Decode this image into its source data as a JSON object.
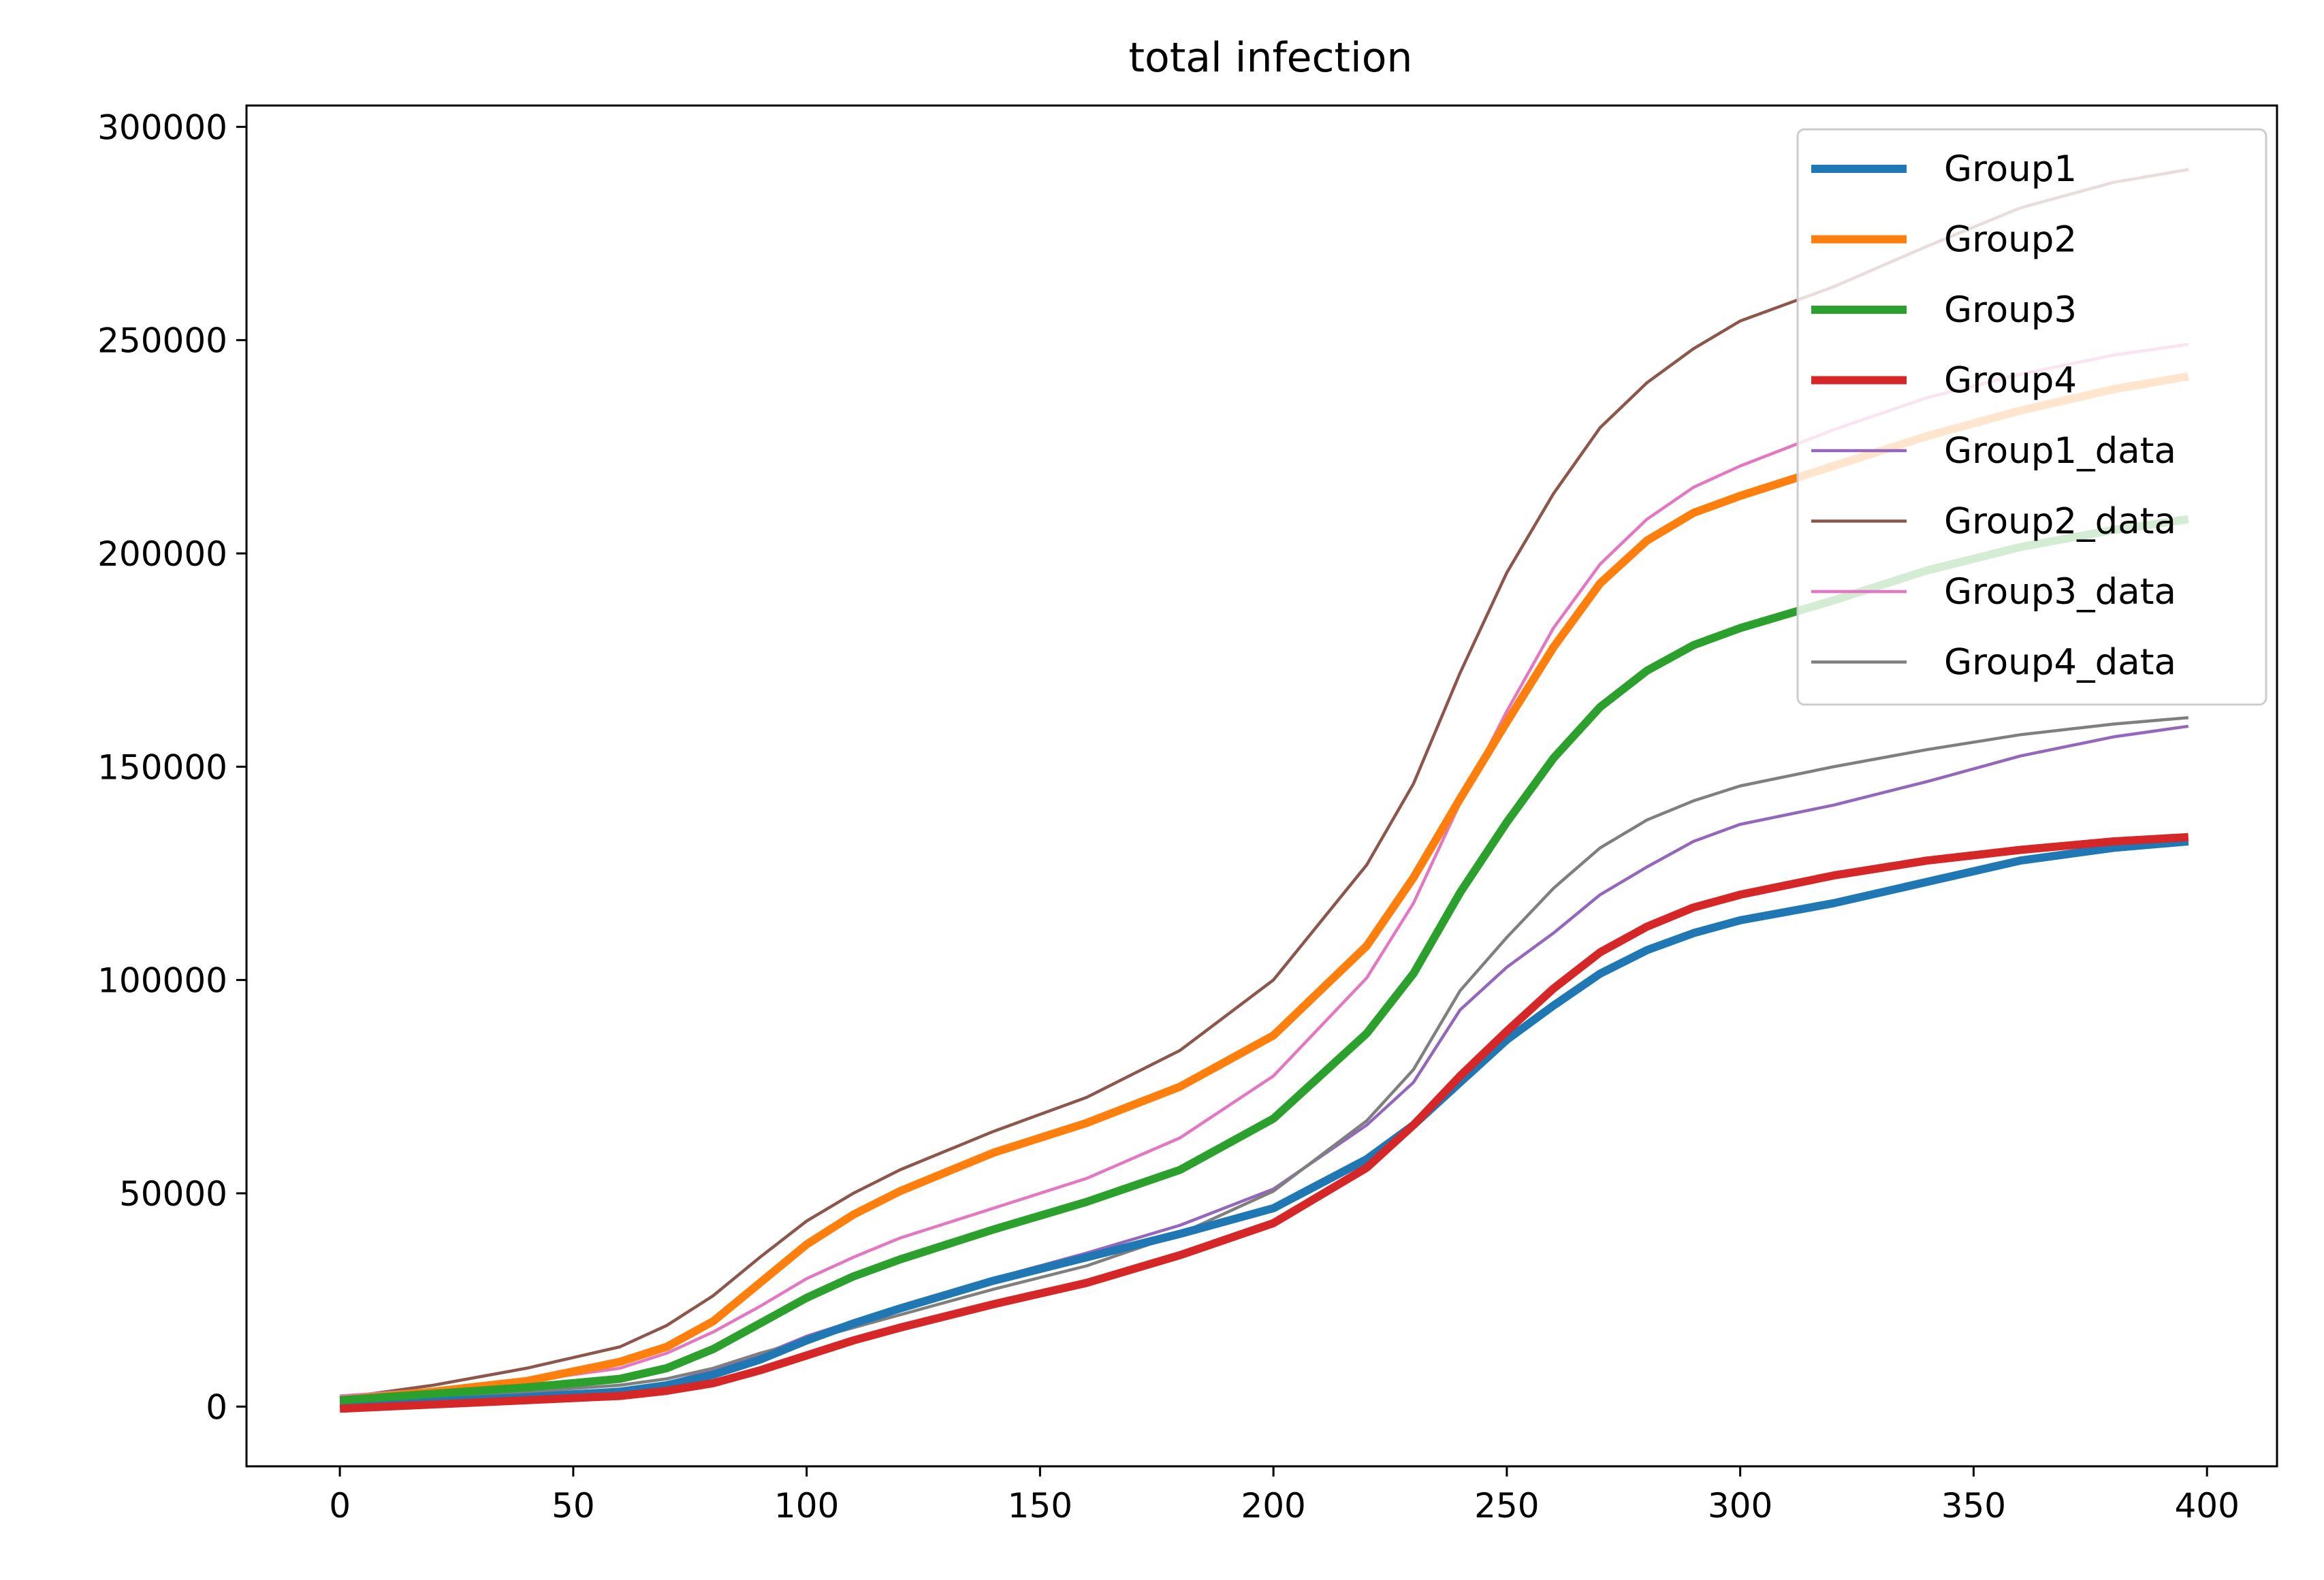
{
  "chart_data": {
    "type": "line",
    "title": "total infection",
    "xlabel": "",
    "ylabel": "",
    "xlim": [
      -20,
      415
    ],
    "ylim": [
      -14000,
      305000
    ],
    "xticks": [
      0,
      50,
      100,
      150,
      200,
      250,
      300,
      350,
      400
    ],
    "yticks": [
      0,
      50000,
      100000,
      150000,
      200000,
      250000,
      300000
    ],
    "xtick_labels": [
      "0",
      "50",
      "100",
      "150",
      "200",
      "250",
      "300",
      "350",
      "400"
    ],
    "ytick_labels": [
      "0",
      "50000",
      "100000",
      "150000",
      "200000",
      "250000",
      "300000"
    ],
    "grid": false,
    "legend_position": "top-right",
    "x": [
      0,
      20,
      40,
      60,
      70,
      80,
      90,
      100,
      110,
      120,
      140,
      160,
      180,
      200,
      220,
      230,
      240,
      250,
      260,
      270,
      280,
      290,
      300,
      320,
      340,
      360,
      380,
      396
    ],
    "series": [
      {
        "name": "Group1",
        "color": "#1f77b4",
        "width": "thick",
        "values": [
          500,
          1200,
          2200,
          3500,
          5000,
          7500,
          11000,
          15500,
          19500,
          23000,
          29500,
          35000,
          40500,
          46500,
          58000,
          66000,
          76000,
          86000,
          94000,
          101500,
          107000,
          111000,
          114000,
          118000,
          123000,
          128000,
          131000,
          132500
        ]
      },
      {
        "name": "Group2",
        "color": "#ff7f0e",
        "width": "thick",
        "values": [
          1500,
          3500,
          6000,
          10500,
          14000,
          20000,
          29000,
          38000,
          45000,
          50500,
          59500,
          66500,
          75000,
          87000,
          108000,
          124000,
          142500,
          160500,
          178000,
          193000,
          203000,
          209500,
          213500,
          220500,
          227500,
          233500,
          238500,
          241500
        ]
      },
      {
        "name": "Group3",
        "color": "#2ca02c",
        "width": "thick",
        "values": [
          1500,
          3000,
          4500,
          6500,
          9000,
          13500,
          19500,
          25500,
          30500,
          34500,
          41500,
          48000,
          55500,
          67500,
          87500,
          101500,
          120500,
          137000,
          152000,
          164000,
          172500,
          178500,
          182500,
          189000,
          196000,
          201500,
          205500,
          208000
        ]
      },
      {
        "name": "Group4",
        "color": "#d62728",
        "width": "thick",
        "values": [
          -500,
          500,
          1500,
          2500,
          3700,
          5500,
          8500,
          12000,
          15500,
          18500,
          24000,
          29000,
          35500,
          43000,
          56000,
          66000,
          77500,
          88000,
          98000,
          106500,
          112500,
          117000,
          120000,
          124500,
          128000,
          130500,
          132500,
          133500
        ]
      },
      {
        "name": "Group1_data",
        "color": "#9467bd",
        "width": "thin",
        "values": [
          1500,
          2000,
          3000,
          4000,
          5500,
          8500,
          12000,
          16500,
          20000,
          23500,
          30000,
          36000,
          42500,
          51000,
          66000,
          76000,
          93000,
          103000,
          111000,
          120000,
          126500,
          132500,
          136500,
          141000,
          146500,
          152500,
          157000,
          159500
        ]
      },
      {
        "name": "Group2_data",
        "color": "#8c564b",
        "width": "thin",
        "values": [
          2000,
          5000,
          9000,
          14000,
          19000,
          26000,
          35000,
          43500,
          50000,
          55500,
          64500,
          72500,
          83500,
          100000,
          127000,
          146000,
          172000,
          195500,
          214000,
          229500,
          240000,
          248000,
          254500,
          262500,
          272000,
          281000,
          287000,
          290000
        ]
      },
      {
        "name": "Group3_data",
        "color": "#e377c2",
        "width": "thin",
        "values": [
          2500,
          4000,
          6000,
          9000,
          12500,
          17500,
          23500,
          30000,
          35000,
          39500,
          46500,
          53500,
          63000,
          77500,
          100500,
          118000,
          141500,
          163000,
          182500,
          197500,
          208000,
          215500,
          220500,
          229000,
          236500,
          242000,
          246500,
          249000
        ]
      },
      {
        "name": "Group4_data",
        "color": "#7f7f7f",
        "width": "thin",
        "values": [
          1000,
          2500,
          3500,
          5000,
          6500,
          9000,
          12500,
          15500,
          18500,
          21500,
          27500,
          33000,
          40500,
          50500,
          67000,
          79000,
          97500,
          110000,
          121500,
          131000,
          137500,
          142000,
          145500,
          150000,
          154000,
          157500,
          160000,
          161500
        ]
      }
    ]
  }
}
